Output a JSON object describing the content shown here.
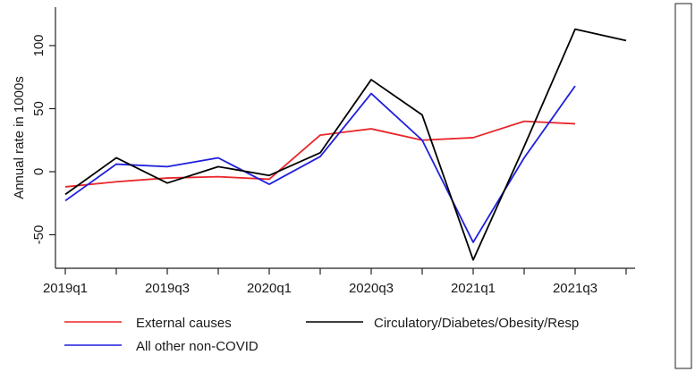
{
  "chart_data": {
    "type": "line",
    "title": "",
    "xlabel": "",
    "ylabel": "Annual rate in 1000s",
    "categories": [
      "2019q1",
      "2019q2",
      "2019q3",
      "2019q4",
      "2020q1",
      "2020q2",
      "2020q3",
      "2020q4",
      "2021q1",
      "2021q2",
      "2021q3",
      "2021q4"
    ],
    "x_tick_labels": [
      "2019q1",
      "2019q3",
      "2020q1",
      "2020q3",
      "2021q1",
      "2021q3"
    ],
    "y_ticks": [
      -50,
      0,
      50,
      100
    ],
    "ylim": [
      -75,
      118
    ],
    "grid": false,
    "legend_placement": "bottom",
    "series": [
      {
        "name": "External causes",
        "color": "#e8262b",
        "values": [
          -12,
          -8,
          -5,
          -4,
          -6,
          29,
          34,
          25,
          27,
          40,
          38,
          null
        ]
      },
      {
        "name": "Circulatory/Diabetes/Obesity/Resp",
        "color": "#000000",
        "values": [
          -18,
          11,
          -9,
          4,
          -3,
          15,
          73,
          45,
          -70,
          20,
          113,
          104
        ]
      },
      {
        "name": "All other non-COVID",
        "color": "#1f1fdd",
        "values": [
          -23,
          6,
          4,
          11,
          -10,
          12,
          62,
          25,
          -56,
          11,
          68,
          null
        ]
      }
    ]
  }
}
